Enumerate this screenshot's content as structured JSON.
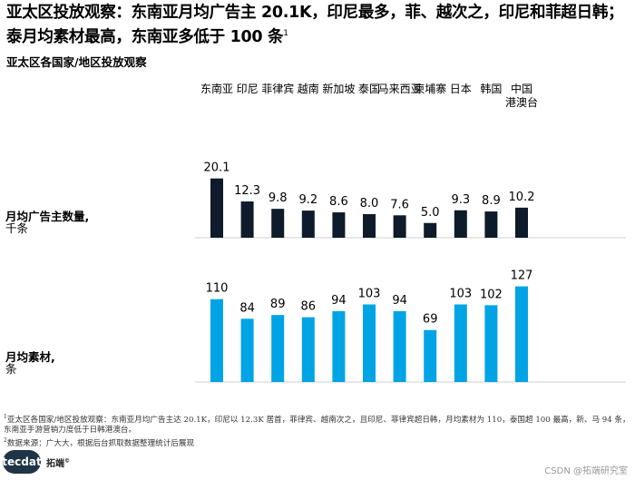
{
  "headline": {
    "text": "亚太区投放观察：东南亚月均广告主 20.1K，印尼最多，菲、越次之，印尼和菲超日韩；泰月均素材最高，东南亚多低于 100 条",
    "sup": "1"
  },
  "subhead": "亚太区各国家/地区投放观察",
  "chart_data": {
    "type": "bar",
    "categories": [
      "东南亚",
      "印尼",
      "菲律宾",
      "越南",
      "新加坡",
      "泰国",
      "马来西亚",
      "柬埔寨",
      "日本",
      "韩国",
      "中国港澳台"
    ],
    "category_lines": [
      [
        "东南亚"
      ],
      [
        "印尼"
      ],
      [
        "菲律宾"
      ],
      [
        "越南"
      ],
      [
        "新加坡"
      ],
      [
        "泰国"
      ],
      [
        "马来西亚"
      ],
      [
        "柬埔寨"
      ],
      [
        "日本"
      ],
      [
        "韩国"
      ],
      [
        "中国",
        "港澳台"
      ]
    ],
    "series": [
      {
        "label_lines": [
          "月均广告主数量,",
          "千条"
        ],
        "color": "#0d1b2a",
        "values": [
          20.1,
          12.3,
          9.8,
          9.2,
          8.6,
          8.0,
          7.6,
          5.0,
          9.3,
          8.9,
          10.2
        ],
        "value_labels": [
          "20.1",
          "12.3",
          "9.8",
          "9.2",
          "8.6",
          "8.0",
          "7.6",
          "5.0",
          "9.3",
          "8.9",
          "10.2"
        ]
      },
      {
        "label_lines": [
          "月均素材,",
          "条"
        ],
        "color": "#00a4e4",
        "values": [
          110,
          84,
          89,
          86,
          94,
          103,
          94,
          69,
          103,
          102,
          127
        ],
        "value_labels": [
          "110",
          "84",
          "89",
          "86",
          "94",
          "103",
          "94",
          "69",
          "103",
          "102",
          "127"
        ]
      }
    ]
  },
  "footnotes": [
    {
      "sup": "1",
      "text": "亚太区各国家/地区投放观察：东南亚月均广告主达 20.1K，印尼以 12.3K 居首，菲律宾、越南次之，且印尼、菲律宾超日韩，月均素材为 110，泰国超 100 最高，新、马 94 条，东南亚手游营销力度低于日韩港澳台。"
    },
    {
      "sup": "2",
      "text": "数据来源：广大大，根据后台抓取数据整理统计后展现"
    }
  ],
  "logo": {
    "bubble": "tecdat",
    "name": "拓端",
    "mark": "©"
  },
  "watermark": "CSDN @拓端研究室"
}
